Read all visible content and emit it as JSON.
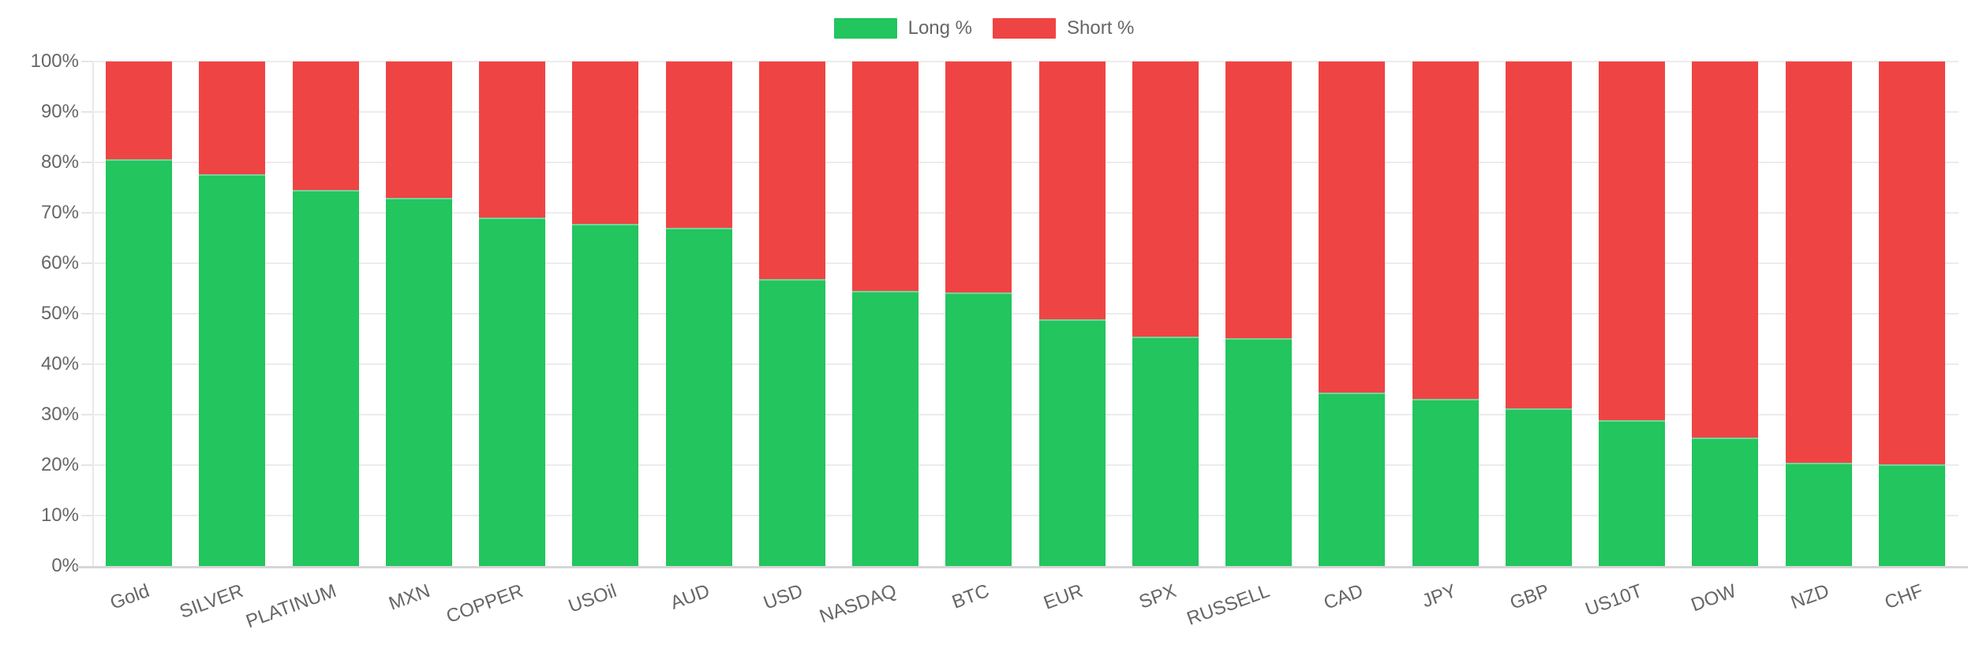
{
  "chart_data": {
    "type": "bar",
    "stacked": true,
    "orientation": "vertical",
    "title": "",
    "xlabel": "",
    "ylabel": "",
    "categories": [
      "Gold",
      "SILVER",
      "PLATINUM",
      "MXN",
      "COPPER",
      "USOil",
      "AUD",
      "USD",
      "NASDAQ",
      "BTC",
      "EUR",
      "SPX",
      "RUSSELL",
      "CAD",
      "JPY",
      "GBP",
      "US10T",
      "DOW",
      "NZD",
      "CHF"
    ],
    "series": [
      {
        "name": "Long %",
        "color": "#22c55e",
        "border_top_color": "#72d49b",
        "values": [
          80.6,
          77.7,
          74.6,
          72.9,
          69.0,
          67.8,
          67.1,
          56.8,
          54.6,
          54.2,
          48.9,
          45.4,
          45.2,
          34.3,
          33.1,
          31.3,
          28.9,
          25.4,
          20.5,
          20.2
        ]
      },
      {
        "name": "Short %",
        "color": "#ef4444",
        "values": [
          19.4,
          22.3,
          25.4,
          27.1,
          31.0,
          32.2,
          32.9,
          43.2,
          45.4,
          45.8,
          51.1,
          54.6,
          54.8,
          65.7,
          66.9,
          68.7,
          71.1,
          74.6,
          79.5,
          79.8
        ]
      }
    ],
    "ylim": [
      0,
      100
    ],
    "yticks": [
      "100%",
      "90%",
      "80%",
      "70%",
      "60%",
      "50%",
      "40%",
      "30%",
      "20%",
      "10%",
      "0%"
    ],
    "grid": true,
    "legend_position": "top",
    "x_tick_rotation_deg": -20
  },
  "colors": {
    "background": "#ffffff",
    "gridline": "#ececec",
    "zero_axis_line": "#d6d6d6",
    "y_axis_line": "#e8e8e8",
    "tick_text": "#666666",
    "legend_text": "#666666"
  }
}
